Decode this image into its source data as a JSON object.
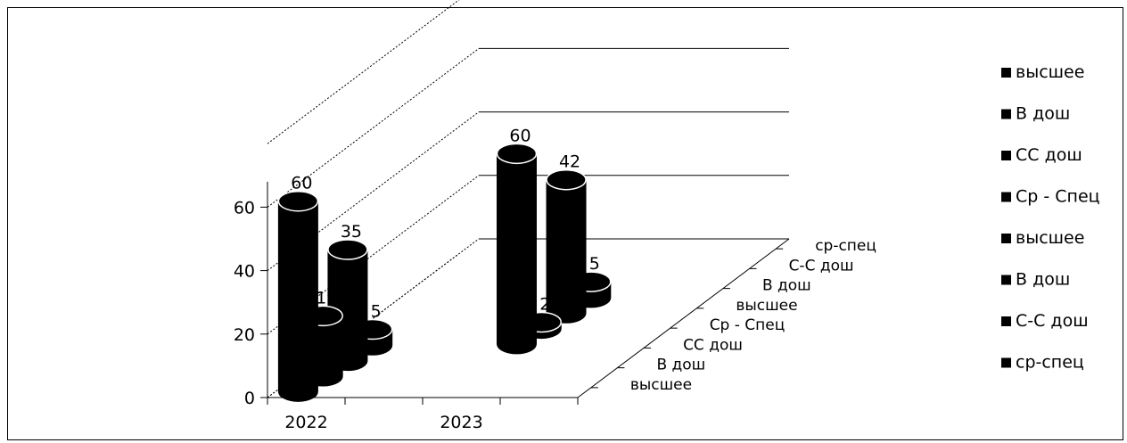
{
  "chart_data": {
    "type": "bar",
    "style": "3d-cylinder",
    "categories": [
      "2022",
      "2023"
    ],
    "series": [
      {
        "name": "высшее",
        "values": [
          60,
          null
        ]
      },
      {
        "name": "В дош",
        "values": [
          19,
          null
        ]
      },
      {
        "name": "СС дош",
        "values": [
          35,
          null
        ]
      },
      {
        "name": "Ср - Спец",
        "values": [
          5,
          null
        ]
      },
      {
        "name": "высшее",
        "values": [
          null,
          60
        ]
      },
      {
        "name": "В дош",
        "values": [
          null,
          2
        ]
      },
      {
        "name": "С-С дош",
        "values": [
          null,
          42
        ]
      },
      {
        "name": "ср-спец",
        "values": [
          null,
          5
        ]
      }
    ],
    "y_ticks": [
      "0",
      "20",
      "40",
      "60"
    ],
    "ylim": [
      0,
      80
    ],
    "depth_labels": [
      "высшее",
      "В дош",
      "СС дош",
      "Ср - Спец",
      "высшее",
      "В дош",
      "С-С дош",
      "ср-спец"
    ],
    "legend": [
      "высшее",
      "В дош",
      "СС дош",
      "Ср - Спец",
      "высшее",
      "В дош",
      "С-С дош",
      "ср-спец"
    ],
    "legend_position": "right",
    "grid": true,
    "colors": {
      "bar": "#000000",
      "bar_top_edge": "#ffffff",
      "grid": "#000000",
      "background": "#ffffff"
    }
  }
}
